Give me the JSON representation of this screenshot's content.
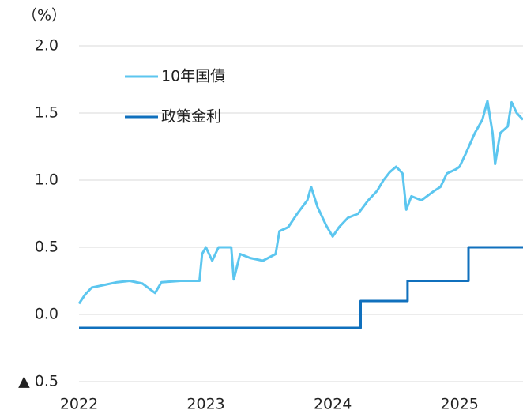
{
  "chart_data": {
    "type": "line",
    "ylabel": "（%）",
    "xlim": [
      2022,
      2025.5
    ],
    "xticks": [
      2022,
      2023,
      2024,
      2025
    ],
    "ylim": [
      -0.5,
      2.0
    ],
    "yticks": [
      {
        "value": -0.5,
        "label": "▲ 0.5"
      },
      {
        "value": 0,
        "label": "0.0"
      },
      {
        "value": 0.5,
        "label": "0.5"
      },
      {
        "value": 1,
        "label": "1.0"
      },
      {
        "value": 1.5,
        "label": "1.5"
      },
      {
        "value": 2,
        "label": "2.0"
      }
    ],
    "grid": true,
    "legend": "upper left",
    "series": [
      {
        "name": "10年国債",
        "color": "#5cc6ef",
        "x": [
          2022.0,
          2022.05,
          2022.1,
          2022.2,
          2022.3,
          2022.4,
          2022.5,
          2022.6,
          2022.65,
          2022.8,
          2022.95,
          2022.97,
          2023.0,
          2023.05,
          2023.1,
          2023.2,
          2023.22,
          2023.27,
          2023.35,
          2023.45,
          2023.55,
          2023.58,
          2023.65,
          2023.72,
          2023.8,
          2023.83,
          2023.88,
          2023.95,
          2024.0,
          2024.05,
          2024.12,
          2024.2,
          2024.28,
          2024.35,
          2024.4,
          2024.45,
          2024.5,
          2024.55,
          2024.58,
          2024.62,
          2024.7,
          2024.8,
          2024.85,
          2024.9,
          2024.97,
          2025.0,
          2025.05,
          2025.12,
          2025.18,
          2025.22,
          2025.26,
          2025.28,
          2025.32,
          2025.38,
          2025.41,
          2025.45,
          2025.5
        ],
        "values": [
          0.08,
          0.15,
          0.2,
          0.22,
          0.24,
          0.25,
          0.23,
          0.16,
          0.24,
          0.25,
          0.25,
          0.45,
          0.5,
          0.4,
          0.5,
          0.5,
          0.26,
          0.45,
          0.42,
          0.4,
          0.45,
          0.62,
          0.65,
          0.75,
          0.85,
          0.95,
          0.8,
          0.66,
          0.58,
          0.65,
          0.72,
          0.75,
          0.85,
          0.92,
          1.0,
          1.06,
          1.1,
          1.05,
          0.78,
          0.88,
          0.85,
          0.92,
          0.95,
          1.05,
          1.08,
          1.1,
          1.2,
          1.35,
          1.45,
          1.59,
          1.35,
          1.12,
          1.35,
          1.4,
          1.58,
          1.5,
          1.45
        ]
      },
      {
        "name": "政策金利",
        "color": "#1070bd",
        "x": [
          2022.0,
          2024.22,
          2024.22,
          2024.59,
          2024.59,
          2025.07,
          2025.07,
          2025.5
        ],
        "values": [
          -0.1,
          -0.1,
          0.1,
          0.1,
          0.25,
          0.25,
          0.5,
          0.5
        ]
      }
    ]
  }
}
